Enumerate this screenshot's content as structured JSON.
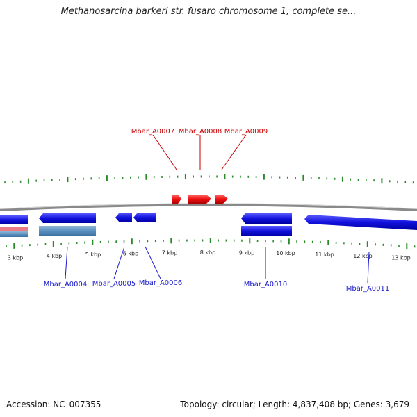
{
  "title": "Methanosarcina barkeri str. fusaro chromosome 1, complete se...",
  "footer": {
    "accession": "Accession: NC_007355",
    "summary": "Topology: circular; Length: 4,837,408 bp; Genes: 3,679"
  },
  "colors": {
    "forward_gene": "#ee1111",
    "reverse_gene": "#1111dd",
    "tick": "#2a8a2a",
    "backbone": "#8a8a8a",
    "label_top": "#cc0000",
    "label_bottom": "#1a1acc"
  },
  "tick_labels": [
    "3 kbp",
    "4 kbp",
    "5 kbp",
    "6 kbp",
    "7 kbp",
    "8 kbp",
    "9 kbp",
    "10 kbp",
    "11 kbp",
    "12 kbp",
    "13 kbp"
  ],
  "genes_top": [
    {
      "name": "Mbar_A0007"
    },
    {
      "name": "Mbar_A0008"
    },
    {
      "name": "Mbar_A0009"
    }
  ],
  "genes_bottom": [
    {
      "name": "Mbar_A0004"
    },
    {
      "name": "Mbar_A0005"
    },
    {
      "name": "Mbar_A0006"
    },
    {
      "name": "Mbar_A0010"
    },
    {
      "name": "Mbar_A0011"
    }
  ]
}
